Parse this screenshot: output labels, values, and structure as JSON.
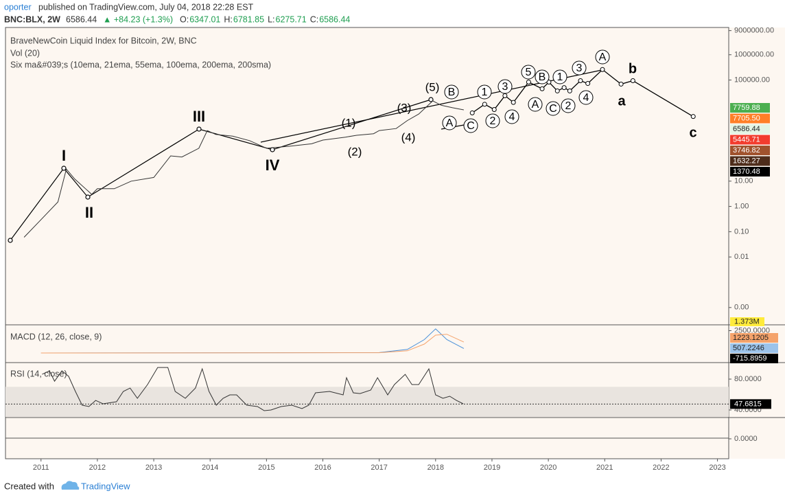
{
  "header": {
    "author": "oporter",
    "published": "published on TradingView.com, July 04, 2018 22:28 EST",
    "symbol": "BNC:BLX, 2W",
    "last": "6586.44",
    "change": "▲ +84.23 (+1.3%)",
    "ohlc": [
      {
        "label": "O:",
        "value": "6347.01"
      },
      {
        "label": "H:",
        "value": "6781.85"
      },
      {
        "label": "L:",
        "value": "6275.71"
      },
      {
        "label": "C:",
        "value": "6586.44"
      }
    ]
  },
  "chart_data": [
    {
      "type": "line",
      "title": "BraveNewCoin Liquid Index for Bitcoin, 2W, BNC",
      "subtitles": [
        "Vol (20)",
        "Six ma&#039;s (10ema, 21ema, 55ema, 100ema, 200ema, 200sma)"
      ],
      "log_scale": true,
      "grid": false,
      "xlim": [
        2010.37,
        2023.2
      ],
      "xticks": [
        2011,
        2012,
        2013,
        2014,
        2015,
        2016,
        2017,
        2018,
        2019,
        2020,
        2021,
        2022,
        2023
      ],
      "ylim": [
        2.2e-05,
        12000000
      ],
      "yticks": [
        {
          "value": 9000000,
          "label": "9000000.00"
        },
        {
          "value": 1000000,
          "label": "1000000.00"
        },
        {
          "value": 100000,
          "label": "100000.00"
        },
        {
          "value": 10,
          "label": "10.00"
        },
        {
          "value": 1,
          "label": "1.00"
        },
        {
          "value": 0.1,
          "label": "0.10"
        },
        {
          "value": 0.01,
          "label": "0.01"
        },
        {
          "value": 0.0001,
          "label": "0.00"
        }
      ],
      "series": [
        {
          "color": "#333333",
          "x": [
            2010.7,
            2011.0,
            2011.3,
            2011.45,
            2011.6,
            2011.9,
            2012.0,
            2012.3,
            2012.6,
            2013.0,
            2013.3,
            2013.5,
            2013.8,
            2013.95,
            2014.1,
            2014.4,
            2014.7,
            2015.0,
            2015.4,
            2015.8,
            2016.0,
            2016.4,
            2016.6,
            2016.9,
            2017.0,
            2017.3,
            2017.5,
            2017.7,
            2017.95,
            2018.1,
            2018.3,
            2018.5
          ],
          "values": [
            0.06,
            0.3,
            1.5,
            30,
            12,
            3,
            5,
            5,
            10,
            14,
            100,
            90,
            200,
            1000,
            700,
            600,
            400,
            200,
            240,
            300,
            420,
            550,
            650,
            750,
            1000,
            1200,
            2500,
            4500,
            15000,
            10000,
            8000,
            6586.44
          ]
        },
        {
          "color": "#000000",
          "x": [
            2018.65,
            2018.87,
            2019.04,
            2019.23,
            2019.38,
            2019.65,
            2019.89,
            2020.01,
            2020.16,
            2020.28,
            2020.38,
            2020.57,
            2020.7,
            2020.96,
            2021.29,
            2021.5,
            2022.57
          ],
          "values": [
            5000,
            11000,
            6800,
            24000,
            13000,
            83000,
            45000,
            83000,
            37000,
            50000,
            37000,
            94000,
            73000,
            260000,
            69000,
            94000,
            3600
          ]
        }
      ],
      "price_tags": {
        "values": [
          7759.88,
          7705.5,
          6586.44,
          5445.71,
          3746.82,
          1632.27,
          1370.48
        ],
        "value_labels": [
          "7759.88",
          "7705.50",
          "6586.44",
          "5445.71",
          "3746.82",
          "1632.27",
          "1370.48"
        ],
        "colors": [
          "#4caf50",
          "#ff7f27",
          "#e3f4e4",
          "#f23c2e",
          "#a0522d",
          "#4e2c1a",
          "#000000"
        ]
      },
      "volume_label": "1.373M",
      "wave_labels": [
        "I",
        "II",
        "III",
        "IV",
        "(1)",
        "(2)",
        "(3)",
        "(4)",
        "(5)",
        "B",
        "A",
        "C",
        "1",
        "2",
        "3",
        "4",
        "5",
        "B",
        "A",
        "1",
        "C",
        "2",
        "3",
        "4",
        "A",
        "b",
        "a",
        "c"
      ]
    },
    {
      "type": "line",
      "title": "MACD (12, 26, close, 9)",
      "ylim": [
        -1000,
        3000
      ],
      "yticks": [
        {
          "value": 2500,
          "label": "2500.0000"
        }
      ],
      "x": [
        2011.0,
        2017.0,
        2017.5,
        2017.8,
        2018.0,
        2018.2,
        2018.5
      ],
      "series": [
        {
          "color": "#4a90d9",
          "values": [
            0,
            50,
            400,
            1500,
            2700,
            1500,
            507.2246
          ]
        },
        {
          "color": "#f5a36b",
          "values": [
            0,
            30,
            250,
            1000,
            2000,
            2100,
            1223.1205
          ]
        }
      ],
      "last_values": [
        1223.1205,
        507.2246,
        -715.8959
      ],
      "last_colors": [
        "#f5a36b",
        "#9cc3ea",
        "#000000"
      ]
    },
    {
      "type": "line",
      "title": "RSI (14, close)",
      "ylim": [
        31.1,
        99.6
      ],
      "yticks": [
        {
          "value": 80,
          "label": "80.0000"
        },
        {
          "value": 40,
          "label": "40.0000"
        }
      ],
      "band": [
        30,
        70
      ],
      "x": [
        2011.02,
        2011.15,
        2011.24,
        2011.37,
        2011.49,
        2011.61,
        2011.73,
        2011.85,
        2011.97,
        2012.1,
        2012.34,
        2012.46,
        2012.58,
        2012.71,
        2012.89,
        2013.07,
        2013.25,
        2013.38,
        2013.56,
        2013.74,
        2013.86,
        2013.98,
        2014.11,
        2014.23,
        2014.35,
        2014.47,
        2014.65,
        2014.84,
        2014.96,
        2015.08,
        2015.26,
        2015.45,
        2015.63,
        2015.75,
        2015.87,
        2016.12,
        2016.36,
        2016.42,
        2016.54,
        2016.66,
        2016.85,
        2016.97,
        2017.15,
        2017.27,
        2017.46,
        2017.58,
        2017.7,
        2017.88,
        2018.0,
        2018.13,
        2018.25,
        2018.37,
        2018.49
      ],
      "series": [
        {
          "color": "#333333",
          "values": [
            86.2,
            90.7,
            77.3,
            90.7,
            83.6,
            64,
            46.2,
            44.4,
            52.4,
            48,
            50.7,
            64,
            68.4,
            55.1,
            72.9,
            95.1,
            95.1,
            64,
            55.1,
            68.4,
            93.3,
            64,
            46.2,
            55.1,
            59.6,
            59.6,
            46.2,
            44.4,
            39.1,
            40,
            44.4,
            46.2,
            41.8,
            46.2,
            62.2,
            64,
            59.6,
            81.8,
            62.2,
            61.3,
            65.8,
            81.8,
            59.6,
            72.9,
            86.2,
            72.9,
            72.9,
            93.3,
            59.6,
            55.1,
            57.8,
            52.4,
            48
          ]
        }
      ],
      "last_value": 47.6815
    },
    {
      "type": "line",
      "ylim": [
        -1,
        1
      ],
      "yticks": [
        {
          "value": 0,
          "label": "0.0000"
        }
      ]
    }
  ],
  "footer": {
    "created": "Created with",
    "brand": "TradingView"
  }
}
